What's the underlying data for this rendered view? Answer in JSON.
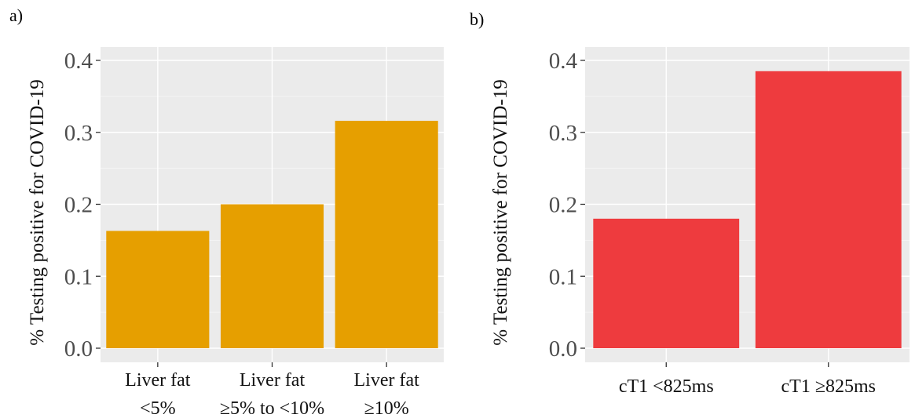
{
  "panels": [
    {
      "letter": "a)",
      "chart_data": {
        "type": "bar",
        "categories": [
          [
            "Liver fat",
            "<5%"
          ],
          [
            "Liver fat",
            "≥5% to <10%"
          ],
          [
            "Liver fat",
            "≥10%"
          ]
        ],
        "values": [
          0.163,
          0.2,
          0.316
        ],
        "title": "",
        "xlabel": "",
        "ylabel": "% Testing positive for COVID-19",
        "ylim": [
          0,
          0.4
        ],
        "yticks": [
          "0.0",
          "0.1",
          "0.2",
          "0.3",
          "0.4"
        ],
        "grid": true,
        "bar_color": "#E69F00"
      }
    },
    {
      "letter": "b)",
      "chart_data": {
        "type": "bar",
        "categories": [
          [
            "cT1 <825ms"
          ],
          [
            "cT1 ≥825ms"
          ]
        ],
        "values": [
          0.18,
          0.385
        ],
        "title": "",
        "xlabel": "",
        "ylabel": "% Testing positive for COVID-19",
        "ylim": [
          0,
          0.4
        ],
        "yticks": [
          "0.0",
          "0.1",
          "0.2",
          "0.3",
          "0.4"
        ],
        "grid": true,
        "bar_color": "#EE3B3E"
      }
    }
  ]
}
